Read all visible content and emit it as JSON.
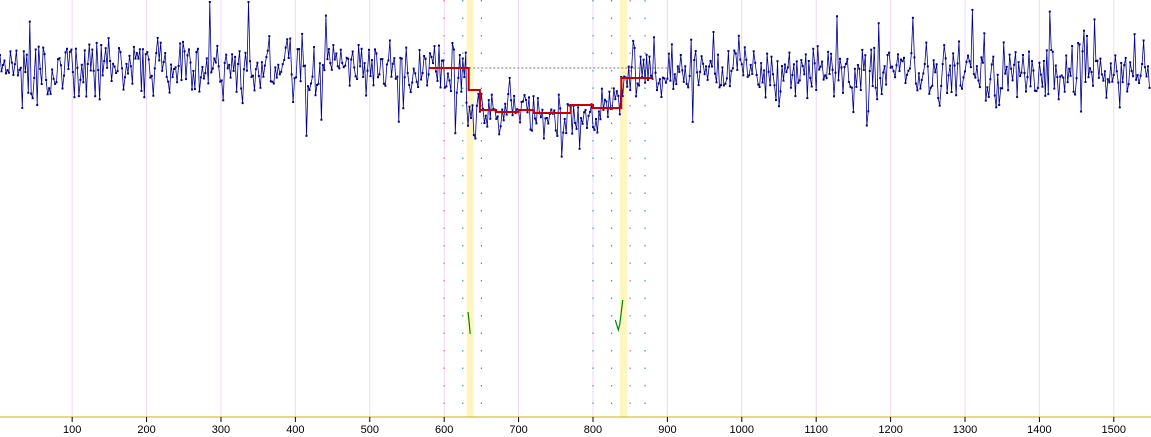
{
  "chart_data": {
    "type": "line",
    "title": "",
    "xlabel": "",
    "ylabel": "",
    "xlim": [
      3,
      1550
    ],
    "ylim": [
      0,
      437
    ],
    "x_ticks": [
      100,
      200,
      300,
      400,
      500,
      600,
      700,
      800,
      900,
      1000,
      1100,
      1200,
      1300,
      1400,
      1500
    ],
    "x_tick_labels": [
      "100",
      "200",
      "300",
      "400",
      "500",
      "600",
      "700",
      "800",
      "900",
      "1000",
      "1100",
      "1200",
      "1300",
      "1400",
      "1500"
    ],
    "grid": "vertical",
    "colors": {
      "signal": "#00008b",
      "step_fit": "#cc0000",
      "baseline_dash": "#555555",
      "highlight_band": "#fff5c0",
      "grid": "#f0d8f0",
      "event_marks": "#008800",
      "dots_pink": "#dd66aa",
      "dots_teal": "#22aaaa",
      "axis": "#d4b000"
    },
    "baseline_level": 68,
    "highlight_bands": [
      [
        630,
        640
      ],
      [
        836,
        846
      ]
    ],
    "dotted_markers": [
      {
        "x": 600,
        "color": "pink"
      },
      {
        "x": 625,
        "color": "teal"
      },
      {
        "x": 650,
        "color": "teal"
      },
      {
        "x": 800,
        "color": "teal"
      },
      {
        "x": 825,
        "color": "teal"
      },
      {
        "x": 850,
        "color": "pink"
      },
      {
        "x": 870,
        "color": "teal"
      }
    ],
    "noise_seed": 7,
    "signal_segments": [
      {
        "x_start": 3,
        "x_end": 630,
        "level": 70,
        "amplitude": 28
      },
      {
        "x_start": 630,
        "x_end": 812,
        "level": 115,
        "amplitude": 22
      },
      {
        "x_start": 812,
        "x_end": 838,
        "level": 103,
        "amplitude": 20
      },
      {
        "x_start": 838,
        "x_end": 1550,
        "level": 72,
        "amplitude": 28
      }
    ],
    "step_fit": {
      "name": "",
      "x": [
        580,
        633,
        633,
        648,
        648,
        670,
        670,
        700,
        700,
        720,
        720,
        770,
        770,
        800,
        800,
        838,
        838,
        880
      ],
      "y": [
        68,
        68,
        90,
        90,
        110,
        110,
        112,
        112,
        110,
        110,
        113,
        113,
        105,
        105,
        108,
        108,
        78,
        78
      ]
    },
    "event_traces": [
      {
        "x": [
          632,
          633,
          634,
          635
        ],
        "y": [
          312,
          318,
          326,
          334
        ]
      },
      {
        "x": [
          830,
          834,
          836,
          838,
          840
        ],
        "y": [
          320,
          330,
          324,
          312,
          300
        ]
      }
    ]
  }
}
